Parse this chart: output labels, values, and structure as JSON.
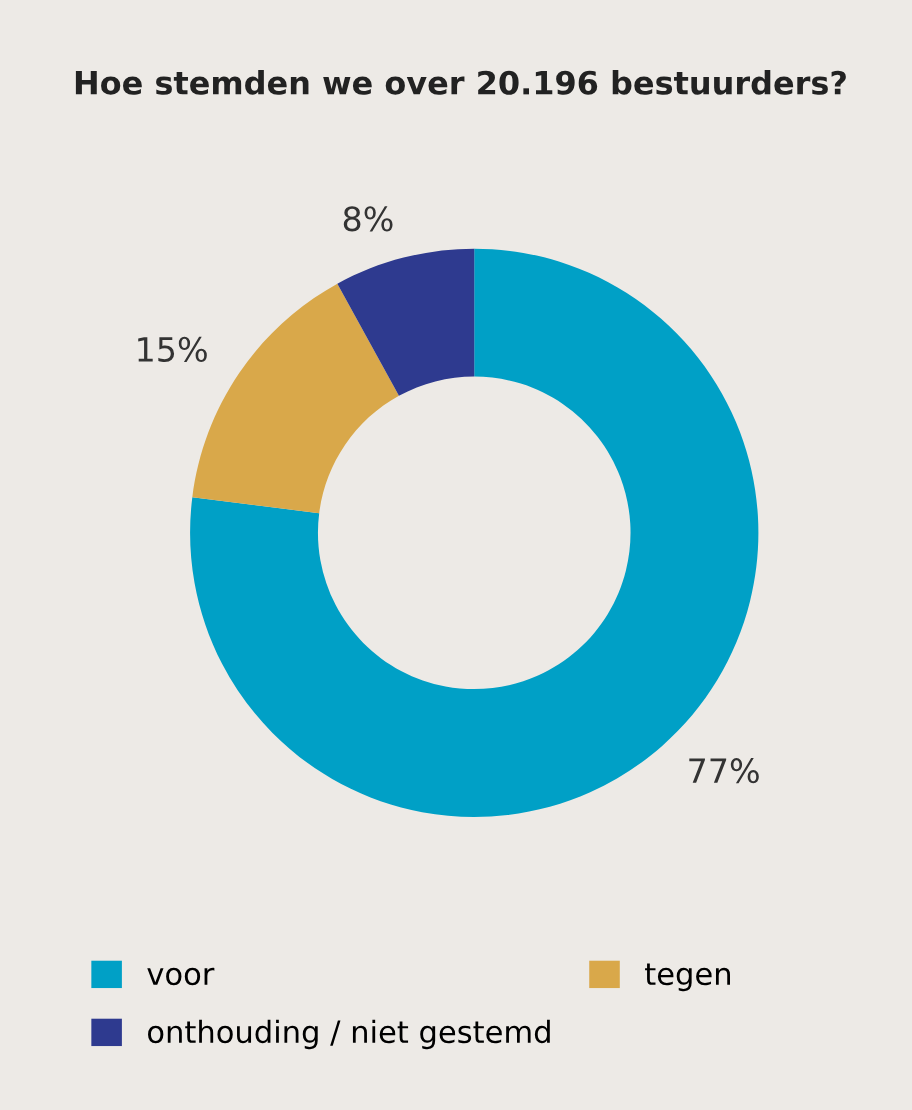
{
  "chart_data": {
    "type": "donut",
    "title": "Hoe stemden we over 20.196 bestuurders?",
    "categories": [
      "voor",
      "tegen",
      "onthouding / niet gestemd"
    ],
    "values": [
      77,
      15,
      8
    ],
    "colors": [
      "#00a0c6",
      "#d9a84a",
      "#2e3a8f"
    ],
    "value_labels": [
      "77%",
      "15%",
      "8%"
    ],
    "legend": "bottom"
  }
}
